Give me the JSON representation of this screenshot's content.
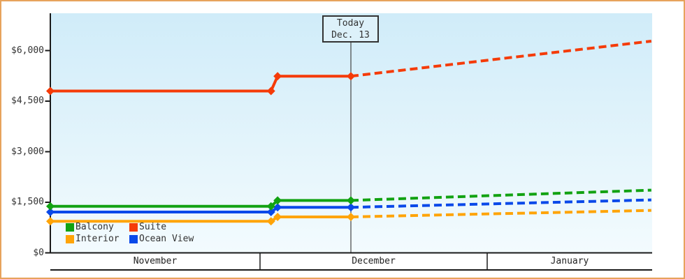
{
  "window": {
    "frame_border_color": "#E7A35C",
    "background": "#FFFFFF"
  },
  "today_box": {
    "line1": "Today",
    "line2": "Dec. 13"
  },
  "y_axis": {
    "ticks": [
      {
        "label": "$6,000",
        "value": 6000
      },
      {
        "label": "$4,500",
        "value": 4500
      },
      {
        "label": "$3,000",
        "value": 3000
      },
      {
        "label": "$1,500",
        "value": 1500
      },
      {
        "label": "$0",
        "value": 0
      }
    ]
  },
  "x_axis": {
    "months": [
      "November",
      "December",
      "January"
    ]
  },
  "legend": {
    "items": [
      {
        "label": "Balcony",
        "color": "#12A212"
      },
      {
        "label": "Suite",
        "color": "#F53B08"
      },
      {
        "label": "Interior",
        "color": "#FFA408"
      },
      {
        "label": "Ocean View",
        "color": "#0A49E9"
      }
    ]
  },
  "chart_data": {
    "type": "line",
    "today_annotation": "Today Dec. 13",
    "ylim": [
      0,
      7100
    ],
    "y_tick_values": [
      0,
      1500,
      3000,
      4500,
      6000
    ],
    "y_tick_labels": [
      "$0",
      "$1,500",
      "$3,000",
      "$4,500",
      "$6,000"
    ],
    "x_months": [
      "November",
      "December",
      "January"
    ],
    "x_days_from_nov1": {
      "start_t": 0,
      "end_t": 83.4,
      "today_t": 42.4
    },
    "series": [
      {
        "name": "Interior",
        "color": "#FFA408",
        "history": [
          {
            "t": 0,
            "price": 935
          },
          {
            "t": 31.5,
            "price": 935
          },
          {
            "t": 32.4,
            "price": 1065
          },
          {
            "t": 42.4,
            "price": 1065
          }
        ],
        "forecast": [
          {
            "t": 42.4,
            "price": 1065
          },
          {
            "t": 83.4,
            "price": 1260
          }
        ]
      },
      {
        "name": "Ocean View",
        "color": "#0A49E9",
        "history": [
          {
            "t": 0,
            "price": 1210
          },
          {
            "t": 31.5,
            "price": 1210
          },
          {
            "t": 32.4,
            "price": 1350
          },
          {
            "t": 42.4,
            "price": 1350
          }
        ],
        "forecast": [
          {
            "t": 42.4,
            "price": 1350
          },
          {
            "t": 83.4,
            "price": 1570
          }
        ]
      },
      {
        "name": "Balcony",
        "color": "#12A212",
        "history": [
          {
            "t": 0,
            "price": 1380
          },
          {
            "t": 31.5,
            "price": 1380
          },
          {
            "t": 32.4,
            "price": 1555
          },
          {
            "t": 42.4,
            "price": 1555
          }
        ],
        "forecast": [
          {
            "t": 42.4,
            "price": 1555
          },
          {
            "t": 83.4,
            "price": 1860
          }
        ]
      },
      {
        "name": "Suite",
        "color": "#F53B08",
        "history": [
          {
            "t": 0,
            "price": 4800
          },
          {
            "t": 31.5,
            "price": 4800
          },
          {
            "t": 32.4,
            "price": 5240
          },
          {
            "t": 42.4,
            "price": 5240
          }
        ],
        "forecast": [
          {
            "t": 42.4,
            "price": 5240
          },
          {
            "t": 83.4,
            "price": 6280
          }
        ]
      }
    ]
  }
}
